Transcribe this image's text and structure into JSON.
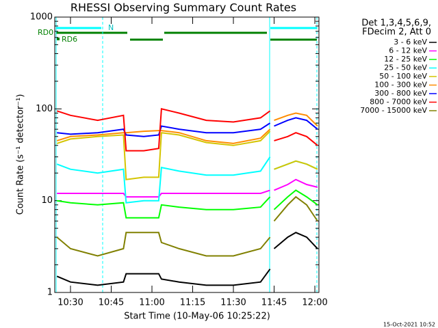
{
  "chart_data": {
    "type": "line",
    "title": "RHESSI Observing Summary Count Rates",
    "x_label": "Start Time (10-May-06 10:25:22)",
    "y_label": "Count Rate (s⁻¹ detector⁻¹)",
    "legend_header": [
      "Det 1,3,4,5,6,9,",
      "FDecim 2, Att 0"
    ],
    "footer": "15-Oct-2021 10:52",
    "flag_labels": [
      "RD0",
      "RD6",
      "N"
    ],
    "log_y": true,
    "xlim": [
      624.2,
      721.5
    ],
    "xticks": [
      {
        "value": 630,
        "label": "10:30"
      },
      {
        "value": 645,
        "label": "10:45"
      },
      {
        "value": 660,
        "label": "11:00"
      },
      {
        "value": 675,
        "label": "11:15"
      },
      {
        "value": 690,
        "label": "11:30"
      },
      {
        "value": 705,
        "label": "11:45"
      },
      {
        "value": 720,
        "label": "12:00"
      }
    ],
    "ylim": [
      1,
      1000
    ],
    "yticks": [
      1,
      10,
      100,
      1000
    ],
    "x": [
      625,
      630,
      640,
      649.5,
      650.5,
      657,
      662.5,
      663.5,
      670,
      680,
      690,
      700,
      703.5,
      704.5,
      705,
      710,
      713,
      717,
      721
    ],
    "series": [
      {
        "name": "3 - 6 keV",
        "color": "#000000",
        "values": [
          1.5,
          1.3,
          1.2,
          1.3,
          1.6,
          1.6,
          1.6,
          1.4,
          1.3,
          1.2,
          1.2,
          1.3,
          1.8,
          null,
          3,
          4,
          4.5,
          4,
          3
        ]
      },
      {
        "name": "6 - 12 keV",
        "color": "#ff00ff",
        "values": [
          12,
          12,
          12,
          12,
          11,
          11,
          11,
          12,
          12,
          12,
          12,
          12,
          13,
          null,
          13,
          15,
          17,
          15,
          14
        ]
      },
      {
        "name": "12 - 25 keV",
        "color": "#00ff00",
        "values": [
          10,
          9.5,
          9,
          9.5,
          6.5,
          6.5,
          6.5,
          9,
          8.5,
          8,
          8,
          8.5,
          11,
          null,
          8,
          11,
          13,
          11,
          9
        ]
      },
      {
        "name": "25 - 50 keV",
        "color": "#00ffff",
        "values": [
          25,
          22,
          20,
          22,
          9.5,
          10,
          10,
          23,
          21,
          19,
          19,
          21,
          30,
          null,
          22,
          25,
          27,
          25,
          22
        ]
      },
      {
        "name": "50 - 100 keV",
        "color": "#d4c400",
        "values": [
          42,
          47,
          50,
          52,
          17,
          18,
          18,
          55,
          52,
          43,
          40,
          45,
          57,
          null,
          22,
          25,
          27,
          25,
          22
        ]
      },
      {
        "name": "100 - 300 keV",
        "color": "#ff8c00",
        "values": [
          45,
          50,
          52,
          55,
          55,
          57,
          58,
          58,
          55,
          45,
          42,
          48,
          60,
          null,
          75,
          85,
          90,
          85,
          65
        ]
      },
      {
        "name": "300 - 800 keV",
        "color": "#0000ff",
        "values": [
          55,
          53,
          55,
          60,
          52,
          50,
          52,
          65,
          60,
          55,
          55,
          60,
          70,
          null,
          65,
          75,
          80,
          75,
          60
        ]
      },
      {
        "name": "800 - 7000 keV",
        "color": "#ff0000",
        "values": [
          95,
          85,
          75,
          85,
          35,
          35,
          37,
          100,
          90,
          75,
          72,
          80,
          95,
          null,
          45,
          50,
          55,
          50,
          40
        ]
      },
      {
        "name": "7000 - 15000 keV",
        "color": "#808000",
        "values": [
          4,
          3,
          2.5,
          3,
          4.5,
          4.5,
          4.5,
          3.5,
          3,
          2.5,
          2.5,
          3,
          4,
          null,
          6,
          9,
          11,
          9,
          6
        ]
      }
    ]
  }
}
